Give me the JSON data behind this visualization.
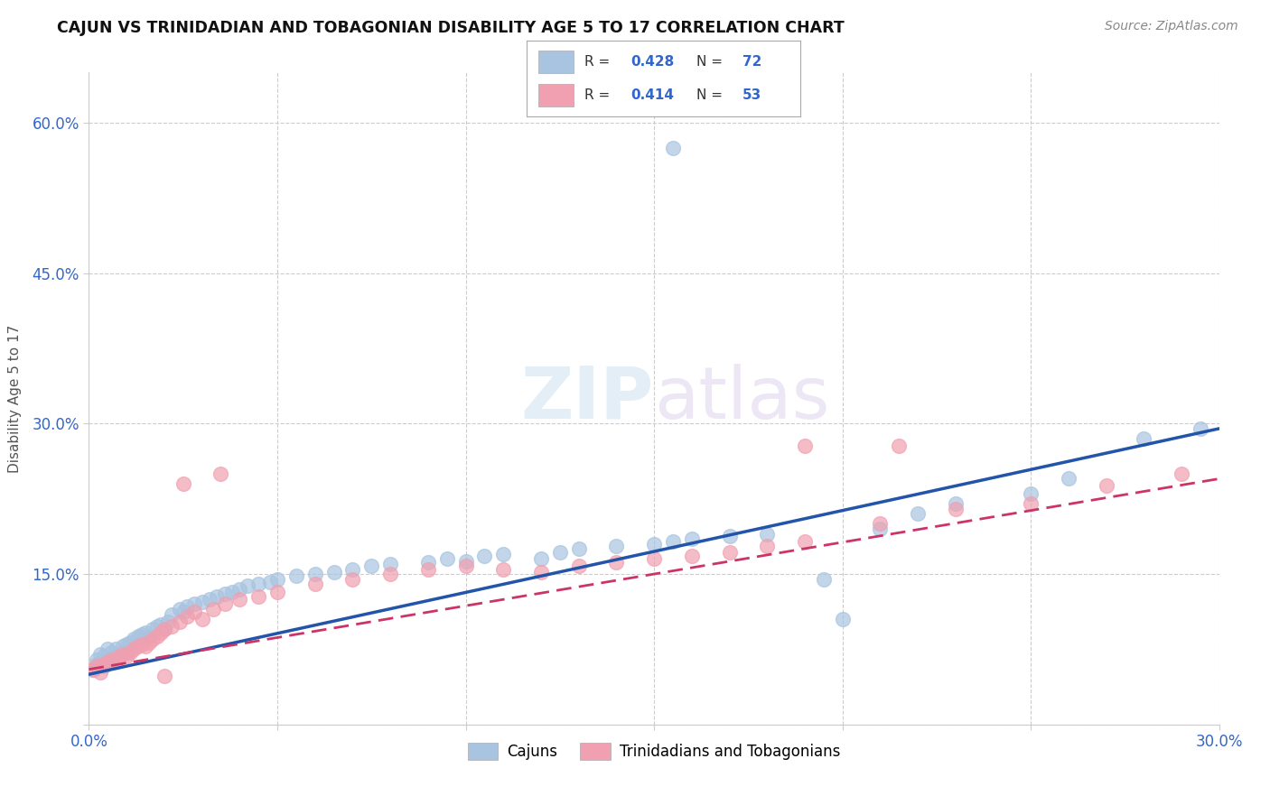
{
  "title": "CAJUN VS TRINIDADIAN AND TOBAGONIAN DISABILITY AGE 5 TO 17 CORRELATION CHART",
  "source": "Source: ZipAtlas.com",
  "ylabel": "Disability Age 5 to 17",
  "xlim": [
    0.0,
    0.3
  ],
  "ylim": [
    0.0,
    0.65
  ],
  "xtick_positions": [
    0.0,
    0.05,
    0.1,
    0.15,
    0.2,
    0.25,
    0.3
  ],
  "xtick_labels": [
    "0.0%",
    "",
    "",
    "",
    "",
    "",
    "30.0%"
  ],
  "ytick_positions": [
    0.0,
    0.15,
    0.3,
    0.45,
    0.6
  ],
  "ytick_labels": [
    "",
    "15.0%",
    "30.0%",
    "45.0%",
    "60.0%"
  ],
  "cajun_R": 0.428,
  "cajun_N": 72,
  "trini_R": 0.414,
  "trini_N": 53,
  "cajun_color": "#a8c4e0",
  "cajun_line_color": "#2255aa",
  "trini_color": "#f0a0b0",
  "trini_line_color": "#cc3366",
  "legend_label_cajun": "Cajuns",
  "legend_label_trini": "Trinidadians and Tobagonians",
  "cajun_x": [
    0.001,
    0.002,
    0.002,
    0.003,
    0.003,
    0.004,
    0.004,
    0.005,
    0.005,
    0.006,
    0.006,
    0.007,
    0.007,
    0.008,
    0.009,
    0.01,
    0.01,
    0.011,
    0.012,
    0.013,
    0.014,
    0.015,
    0.016,
    0.017,
    0.018,
    0.019,
    0.02,
    0.021,
    0.022,
    0.024,
    0.025,
    0.026,
    0.028,
    0.03,
    0.032,
    0.034,
    0.036,
    0.038,
    0.04,
    0.042,
    0.045,
    0.048,
    0.05,
    0.055,
    0.06,
    0.065,
    0.07,
    0.075,
    0.08,
    0.09,
    0.095,
    0.1,
    0.105,
    0.11,
    0.12,
    0.125,
    0.13,
    0.14,
    0.15,
    0.155,
    0.16,
    0.17,
    0.18,
    0.195,
    0.2,
    0.21,
    0.22,
    0.23,
    0.25,
    0.26,
    0.28,
    0.295
  ],
  "cajun_y": [
    0.055,
    0.06,
    0.065,
    0.06,
    0.07,
    0.058,
    0.068,
    0.062,
    0.075,
    0.065,
    0.072,
    0.068,
    0.075,
    0.07,
    0.078,
    0.072,
    0.08,
    0.082,
    0.085,
    0.088,
    0.09,
    0.092,
    0.088,
    0.095,
    0.098,
    0.1,
    0.095,
    0.102,
    0.11,
    0.115,
    0.112,
    0.118,
    0.12,
    0.122,
    0.125,
    0.128,
    0.13,
    0.132,
    0.135,
    0.138,
    0.14,
    0.142,
    0.145,
    0.148,
    0.15,
    0.152,
    0.155,
    0.158,
    0.16,
    0.162,
    0.165,
    0.163,
    0.168,
    0.17,
    0.165,
    0.172,
    0.175,
    0.178,
    0.18,
    0.182,
    0.185,
    0.188,
    0.19,
    0.145,
    0.105,
    0.195,
    0.21,
    0.22,
    0.23,
    0.245,
    0.285,
    0.295
  ],
  "cajun_outlier_x": [
    0.155
  ],
  "cajun_outlier_y": [
    0.575
  ],
  "trini_x": [
    0.001,
    0.002,
    0.003,
    0.004,
    0.005,
    0.006,
    0.007,
    0.008,
    0.009,
    0.01,
    0.011,
    0.012,
    0.013,
    0.014,
    0.015,
    0.016,
    0.017,
    0.018,
    0.019,
    0.02,
    0.022,
    0.024,
    0.026,
    0.028,
    0.03,
    0.033,
    0.036,
    0.04,
    0.045,
    0.05,
    0.06,
    0.07,
    0.08,
    0.09,
    0.1,
    0.11,
    0.12,
    0.13,
    0.14,
    0.15,
    0.16,
    0.17,
    0.18,
    0.19,
    0.21,
    0.23,
    0.25,
    0.27,
    0.29,
    0.02,
    0.025,
    0.035,
    0.215
  ],
  "trini_y": [
    0.055,
    0.058,
    0.052,
    0.06,
    0.062,
    0.065,
    0.063,
    0.068,
    0.07,
    0.068,
    0.072,
    0.075,
    0.078,
    0.08,
    0.078,
    0.082,
    0.085,
    0.088,
    0.092,
    0.095,
    0.098,
    0.102,
    0.108,
    0.112,
    0.105,
    0.115,
    0.12,
    0.125,
    0.128,
    0.132,
    0.14,
    0.145,
    0.15,
    0.155,
    0.158,
    0.155,
    0.152,
    0.158,
    0.162,
    0.165,
    0.168,
    0.172,
    0.178,
    0.182,
    0.2,
    0.215,
    0.22,
    0.238,
    0.25,
    0.048,
    0.24,
    0.25,
    0.278
  ],
  "trini_outlier_x": [
    0.19
  ],
  "trini_outlier_y": [
    0.278
  ],
  "cajun_line_x": [
    0.0,
    0.3
  ],
  "cajun_line_y": [
    0.05,
    0.295
  ],
  "trini_line_x": [
    0.0,
    0.3
  ],
  "trini_line_y": [
    0.055,
    0.245
  ]
}
